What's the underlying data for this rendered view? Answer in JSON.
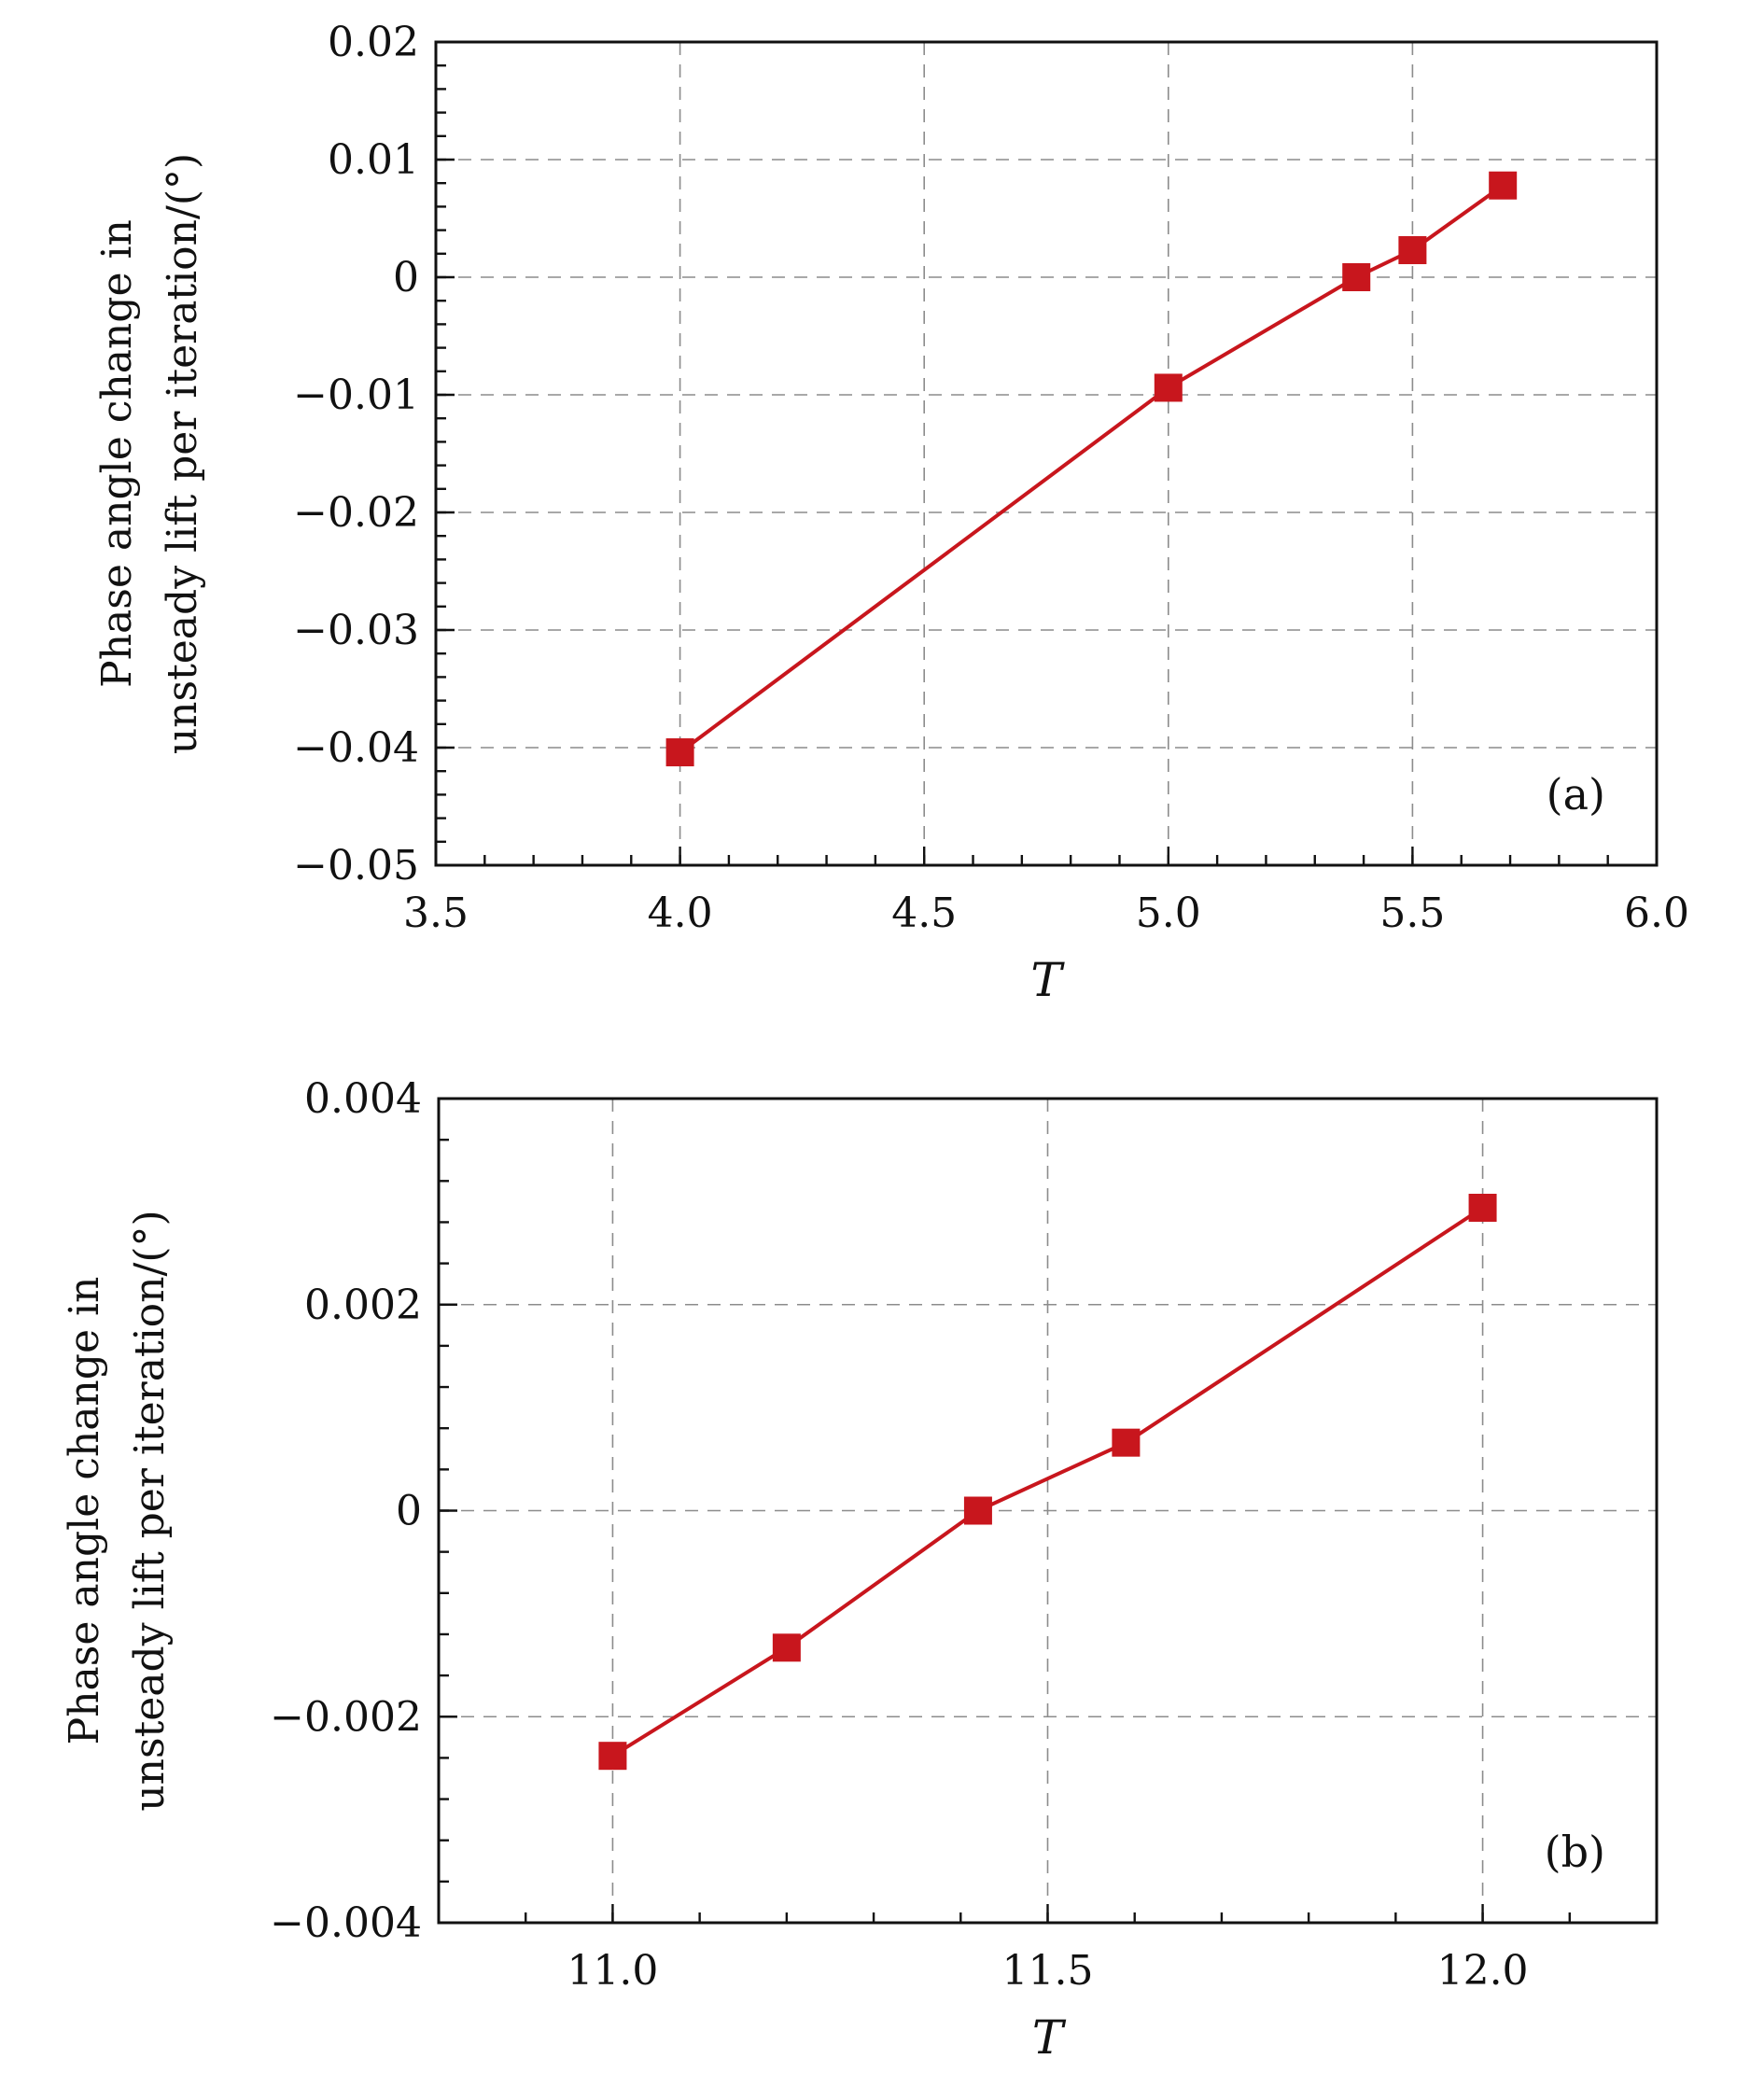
{
  "chart_data": [
    {
      "type": "line",
      "panel_label": "(a)",
      "xlabel": "T",
      "ylabel_lines": [
        "Phase angle change in",
        "unsteady lift per iteration/(°)"
      ],
      "xlim": [
        3.5,
        6.0
      ],
      "ylim": [
        -0.05,
        0.02
      ],
      "x_ticks": [
        3.5,
        4.0,
        4.5,
        5.0,
        5.5,
        6.0
      ],
      "x_tick_labels": [
        "3.5",
        "4.0",
        "4.5",
        "5.0",
        "5.5",
        "6.0"
      ],
      "x_minor_step": 0.1,
      "y_ticks": [
        -0.05,
        -0.04,
        -0.03,
        -0.02,
        -0.01,
        0,
        0.01,
        0.02
      ],
      "y_tick_labels": [
        "−0.05",
        "−0.04",
        "−0.03",
        "−0.02",
        "−0.01",
        "0",
        "0.01",
        "0.02"
      ],
      "y_minor_step": 0.002,
      "grid": true,
      "color": "#c8161d",
      "marker": "square",
      "series": [
        {
          "x": [
            4.0,
            5.0,
            5.385,
            5.5,
            5.685
          ],
          "y": [
            -0.0404,
            -0.0094,
            0.0,
            0.0023,
            0.0078
          ]
        }
      ]
    },
    {
      "type": "line",
      "panel_label": "(b)",
      "xlabel": "T",
      "ylabel_lines": [
        "Phase angle change in",
        "unsteady lift per iteration/(°)"
      ],
      "xlim": [
        10.8,
        12.2
      ],
      "ylim": [
        -0.004,
        0.004
      ],
      "x_ticks": [
        11.0,
        11.5,
        12.0
      ],
      "x_tick_labels": [
        "11.0",
        "11.5",
        "12.0"
      ],
      "x_minor_step": 0.1,
      "y_ticks": [
        -0.004,
        -0.002,
        0,
        0.002,
        0.004
      ],
      "y_tick_labels": [
        "−0.004",
        "−0.002",
        "0",
        "0.002",
        "0.004"
      ],
      "y_minor_step": 0.0004,
      "grid": true,
      "color": "#c8161d",
      "marker": "square",
      "series": [
        {
          "x": [
            11.0,
            11.2,
            11.42,
            11.59,
            12.0
          ],
          "y": [
            -0.00238,
            -0.00133,
            0.0,
            0.00066,
            0.00294
          ]
        }
      ]
    }
  ]
}
